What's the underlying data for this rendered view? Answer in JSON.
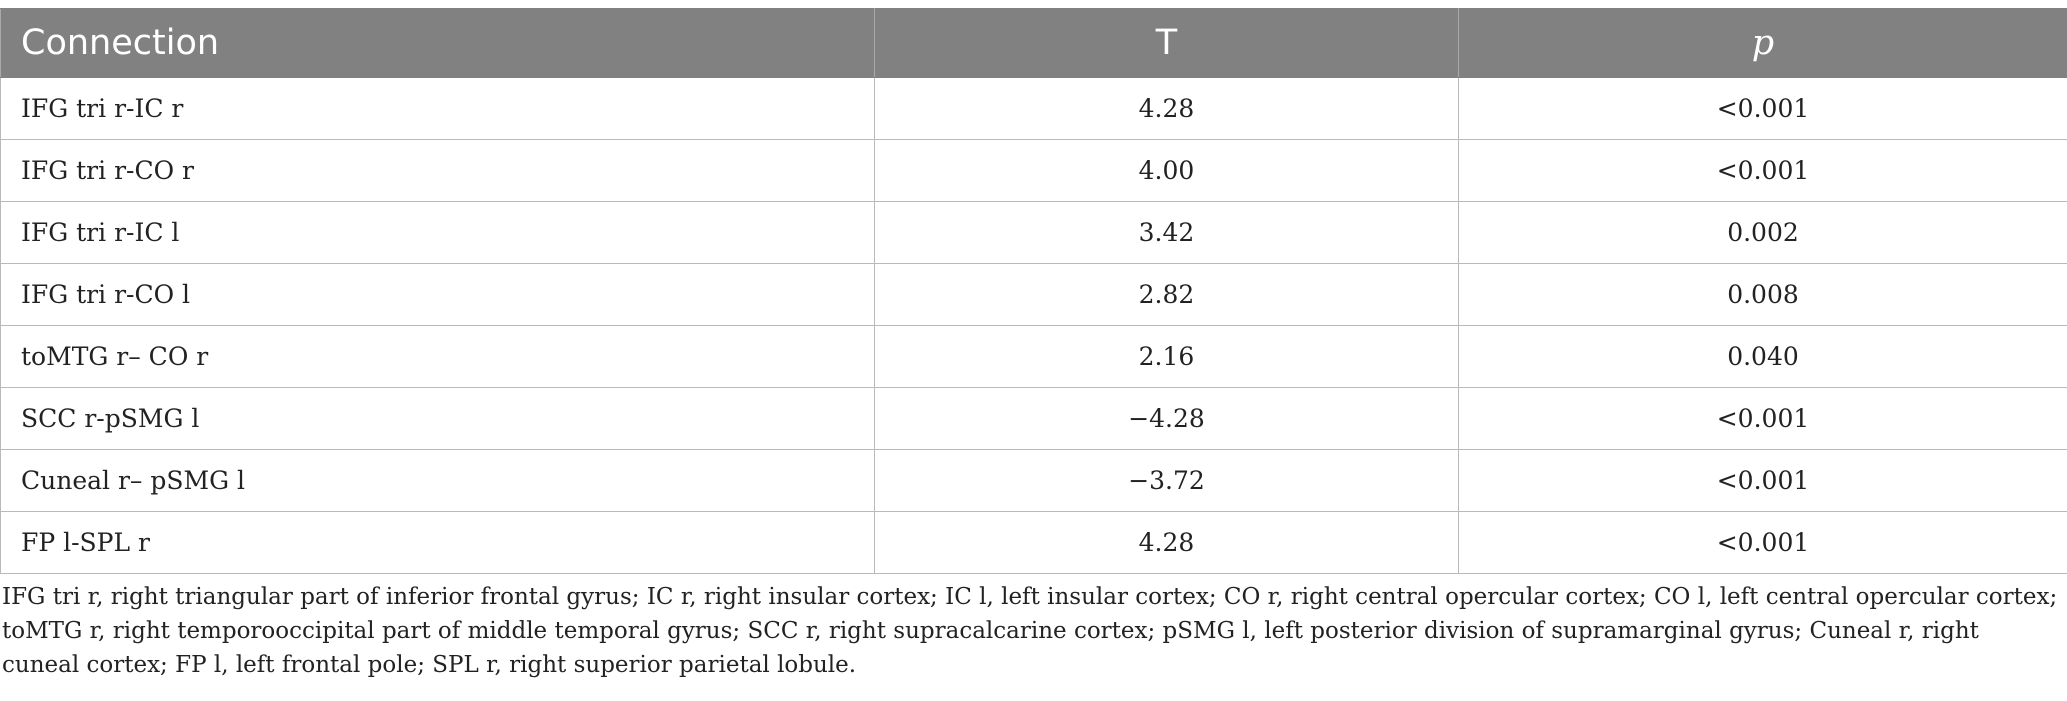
{
  "table": {
    "headers": [
      "Connection",
      "T",
      "p"
    ],
    "rows": [
      {
        "connection": "IFG tri r-IC r",
        "t": "4.28",
        "p": "<0.001"
      },
      {
        "connection": "IFG tri r-CO r",
        "t": "4.00",
        "p": "<0.001"
      },
      {
        "connection": "IFG tri r-IC l",
        "t": "3.42",
        "p": "0.002"
      },
      {
        "connection": "IFG tri r-CO l",
        "t": "2.82",
        "p": "0.008"
      },
      {
        "connection": "toMTG r– CO r",
        "t": "2.16",
        "p": "0.040"
      },
      {
        "connection": "SCC r-pSMG l",
        "t": "−4.28",
        "p": "<0.001"
      },
      {
        "connection": "Cuneal r– pSMG l",
        "t": "−3.72",
        "p": "<0.001"
      },
      {
        "connection": "FP l-SPL r",
        "t": "4.28",
        "p": "<0.001"
      }
    ]
  },
  "footnote": "IFG tri r, right triangular part of inferior frontal gyrus; IC r, right insular cortex; IC l, left insular cortex; CO r, right central opercular cortex; CO l, left central opercular cortex; toMTG r, right temporooccipital part of middle temporal gyrus; SCC r, right supracalcarine cortex; pSMG l, left posterior division of supramarginal gyrus; Cuneal r, right cuneal cortex; FP l, left frontal pole; SPL r, right superior parietal lobule.",
  "colors": {
    "header_bg": "#818181",
    "header_text": "#ffffff",
    "grid": "#b9b9b9",
    "body_text": "#222222"
  }
}
